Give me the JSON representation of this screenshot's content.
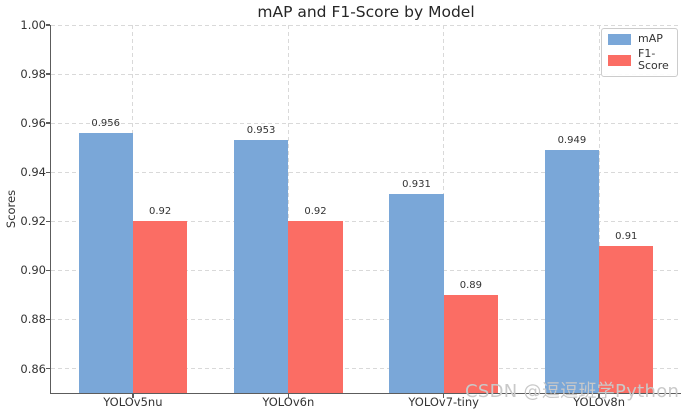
{
  "chart_data": {
    "type": "bar",
    "title": "mAP and F1-Score by Model",
    "xlabel": "",
    "ylabel": "Scores",
    "categories": [
      "YOLOv5nu",
      "YOLOv6n",
      "YOLOv7-tiny",
      "YOLOv8n"
    ],
    "series": [
      {
        "name": "mAP",
        "color": "#7aa7d8",
        "values": [
          0.956,
          0.953,
          0.931,
          0.949
        ],
        "labels": [
          "0.956",
          "0.953",
          "0.931",
          "0.949"
        ]
      },
      {
        "name": "F1-Score",
        "color": "#fb6d64",
        "values": [
          0.92,
          0.92,
          0.89,
          0.91
        ],
        "labels": [
          "0.92",
          "0.92",
          "0.89",
          "0.91"
        ]
      }
    ],
    "ylim": [
      0.85,
      1.0
    ],
    "yticks": [
      0.86,
      0.88,
      0.9,
      0.92,
      0.94,
      0.96,
      0.98,
      1.0
    ],
    "ytick_labels": [
      "0.86",
      "0.88",
      "0.90",
      "0.92",
      "0.94",
      "0.96",
      "0.98",
      "1.00"
    ],
    "bar_width": 0.35,
    "grid": "dashed, horizontal at yticks and vertical at category centers",
    "legend_position": "upper right"
  },
  "watermark": {
    "text": "CSDN @逗逗班学Python"
  }
}
